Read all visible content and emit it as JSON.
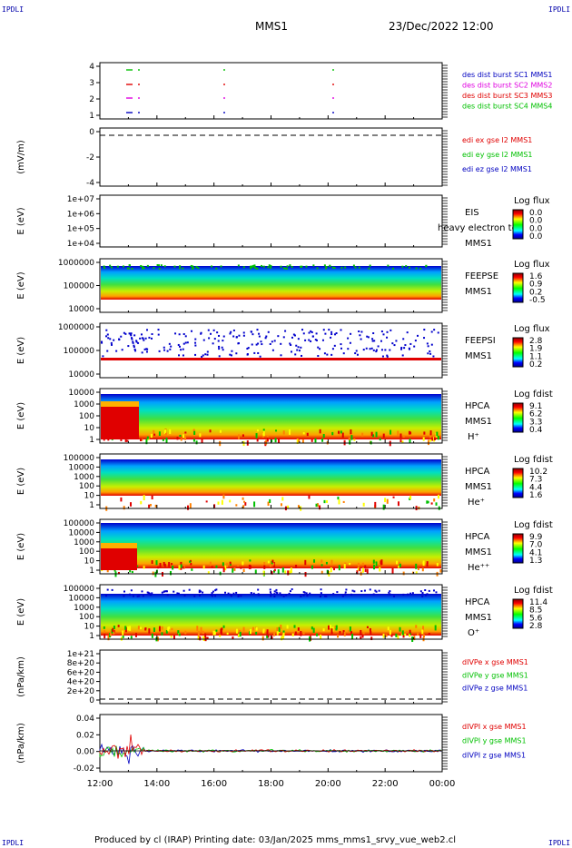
{
  "corner_label": "IPDLI",
  "header": {
    "mission": "MMS1",
    "datetime": "23/Dec/2022 12:00"
  },
  "footer": "Produced by cl (IRAP)   Printing date: 03/Jan/2025   mms_mms1_srvy_vue_web2.cl",
  "colors": {
    "red": "#e00000",
    "green": "#00c000",
    "blue": "#0000c0",
    "magenta": "#e000e0"
  },
  "x_axis": {
    "ticks": [
      "12:00",
      "14:00",
      "16:00",
      "18:00",
      "20:00",
      "22:00",
      "00:00"
    ]
  },
  "chart_data": [
    {
      "type": "scatter",
      "id": "burst",
      "ylabel": "",
      "yticks": [
        "4",
        "3",
        "2",
        "1"
      ],
      "legend": [
        {
          "text": "des dist burst SC1 MMS1",
          "color": "blue"
        },
        {
          "text": "des dist burst SC2 MMS2",
          "color": "magenta"
        },
        {
          "text": "des dist burst SC3 MMS3",
          "color": "red"
        },
        {
          "text": "des dist burst SC4 MMS4",
          "color": "green"
        }
      ]
    },
    {
      "type": "line",
      "id": "edi",
      "ylabel": "(mV/m)",
      "yticks": [
        "0",
        "-2",
        "-4"
      ],
      "legend": [
        {
          "text": "edi ex gse l2 MMS1",
          "color": "red"
        },
        {
          "text": "edi ey gse l2 MMS1",
          "color": "green"
        },
        {
          "text": "edi ez gse l2 MMS1",
          "color": "blue"
        }
      ]
    },
    {
      "type": "heatmap",
      "id": "eis",
      "ylabel": "E (eV)",
      "yticks": [
        "1e+07",
        "1e+06",
        "1e+05",
        "1e+04"
      ],
      "labels": [
        "EIS",
        "heavy electron to",
        "MMS1"
      ],
      "colorbar": {
        "title": "Log flux",
        "ticks": [
          "0.0",
          "0.0",
          "0.0",
          "0.0"
        ]
      }
    },
    {
      "type": "heatmap",
      "id": "feepse",
      "ylabel": "E (eV)",
      "yticks": [
        "1000000",
        "100000",
        "10000"
      ],
      "labels": [
        "FEEPSE",
        "MMS1"
      ],
      "colorbar": {
        "title": "Log flux",
        "ticks": [
          "1.6",
          "0.9",
          "0.2",
          "-0.5"
        ]
      }
    },
    {
      "type": "heatmap",
      "id": "feepsi",
      "ylabel": "E (eV)",
      "yticks": [
        "1000000",
        "100000",
        "10000"
      ],
      "labels": [
        "FEEPSI",
        "MMS1"
      ],
      "colorbar": {
        "title": "Log flux",
        "ticks": [
          "2.8",
          "1.9",
          "1.1",
          "0.2"
        ]
      }
    },
    {
      "type": "heatmap",
      "id": "hpca_h",
      "ylabel": "E (eV)",
      "yticks": [
        "10000",
        "1000",
        "100",
        "10",
        "1"
      ],
      "labels": [
        "HPCA",
        "MMS1",
        "H⁺"
      ],
      "colorbar": {
        "title": "Log fdist",
        "ticks": [
          "9.1",
          "6.2",
          "3.3",
          "0.4"
        ]
      }
    },
    {
      "type": "heatmap",
      "id": "hpca_he",
      "ylabel": "E (eV)",
      "yticks": [
        "100000",
        "10000",
        "1000",
        "100",
        "10",
        "1"
      ],
      "labels": [
        "HPCA",
        "MMS1",
        "He⁺"
      ],
      "colorbar": {
        "title": "Log fdist",
        "ticks": [
          "10.2",
          "7.3",
          "4.4",
          "1.6"
        ]
      }
    },
    {
      "type": "heatmap",
      "id": "hpca_hepp",
      "ylabel": "E (eV)",
      "yticks": [
        "100000",
        "10000",
        "1000",
        "100",
        "10",
        "1"
      ],
      "labels": [
        "HPCA",
        "MMS1",
        "He⁺⁺"
      ],
      "colorbar": {
        "title": "Log fdist",
        "ticks": [
          "9.9",
          "7.0",
          "4.1",
          "1.3"
        ]
      }
    },
    {
      "type": "heatmap",
      "id": "hpca_o",
      "ylabel": "E (eV)",
      "yticks": [
        "100000",
        "10000",
        "1000",
        "100",
        "10",
        "1"
      ],
      "labels": [
        "HPCA",
        "MMS1",
        "O⁺"
      ],
      "colorbar": {
        "title": "Log fdist",
        "ticks": [
          "11.4",
          "8.5",
          "5.6",
          "2.8"
        ]
      }
    },
    {
      "type": "line",
      "id": "divpe",
      "ylabel": "(nPa/km)",
      "yticks": [
        "1e+21",
        "8e+20",
        "6e+20",
        "4e+20",
        "2e+20",
        "0"
      ],
      "legend": [
        {
          "text": "dIVPe x gse MMS1",
          "color": "red"
        },
        {
          "text": "dIVPe y gse MMS1",
          "color": "green"
        },
        {
          "text": "dIVPe z gse MMS1",
          "color": "blue"
        }
      ]
    },
    {
      "type": "line",
      "id": "divpi",
      "ylabel": "(nPa/km)",
      "yticks": [
        "0.04",
        "0.02",
        "0.00",
        "-0.02"
      ],
      "legend": [
        {
          "text": "dIVPI x gse MMS1",
          "color": "red"
        },
        {
          "text": "dIVPI y gse MMS1",
          "color": "green"
        },
        {
          "text": "dIVPI z gse MMS1",
          "color": "blue"
        }
      ]
    }
  ]
}
